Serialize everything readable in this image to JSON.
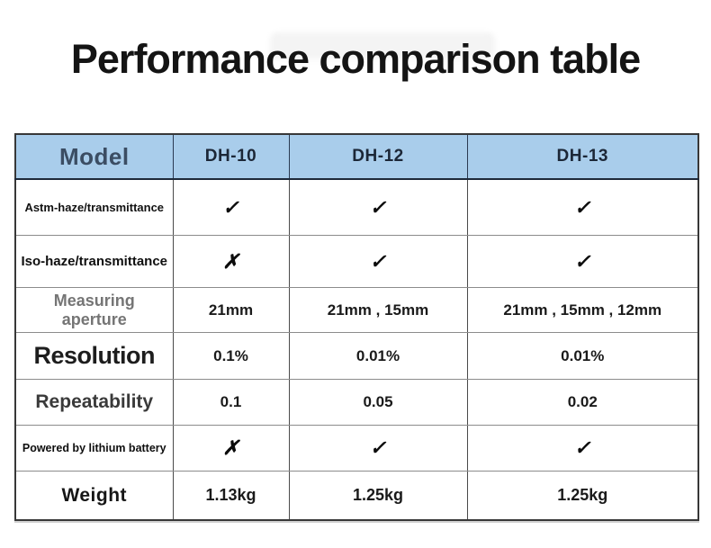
{
  "title": "Performance comparison table",
  "colors": {
    "header_bg": "#a9cdeb",
    "header_text": "#3b4d63",
    "title_text": "#141414",
    "border_dark": "#383838",
    "mark": "#0c0c0c"
  },
  "icons": {
    "check": "check-icon",
    "cross": "cross-icon"
  },
  "chart_data": {
    "type": "table",
    "title": "Performance comparison table",
    "columns": [
      "Model",
      "DH-10",
      "DH-12",
      "DH-13"
    ],
    "rows": [
      {
        "label": "Astm-haze/transmittance",
        "values": [
          "✓",
          "✓",
          "✓"
        ]
      },
      {
        "label": "Iso-haze/transmittance",
        "values": [
          "✗",
          "✓",
          "✓"
        ]
      },
      {
        "label": "Measuring aperture",
        "values": [
          "21mm",
          "21mm , 15mm",
          "21mm , 15mm , 12mm"
        ]
      },
      {
        "label": "Resolution",
        "values": [
          "0.1%",
          "0.01%",
          "0.01%"
        ]
      },
      {
        "label": "Repeatability",
        "values": [
          "0.1",
          "0.05",
          "0.02"
        ]
      },
      {
        "label": "Powered by lithium battery",
        "values": [
          "✗",
          "✓",
          "✓"
        ]
      },
      {
        "label": "Weight",
        "values": [
          "1.13kg",
          "1.25kg",
          "1.25kg"
        ]
      }
    ]
  }
}
